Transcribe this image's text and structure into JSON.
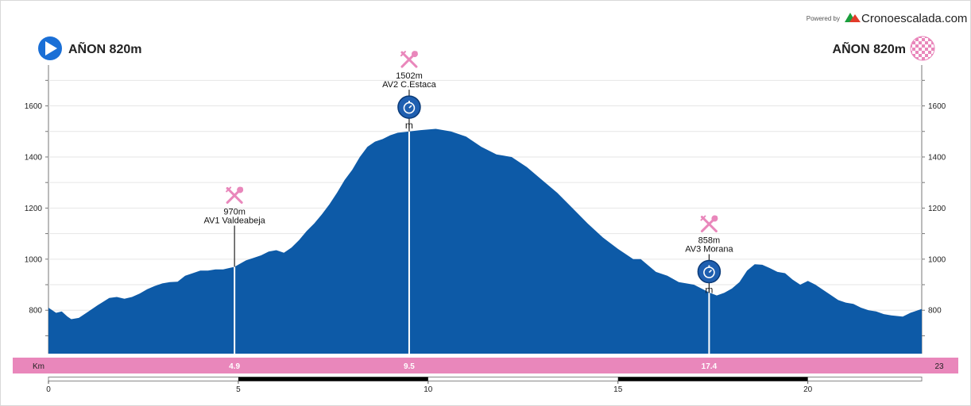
{
  "header": {
    "powered_by": "Powered by",
    "brand": "Cronoescalada.com",
    "start_label": "AÑON 820m",
    "finish_label": "AÑON 820m"
  },
  "colors": {
    "profile_fill": "#0d5aa7",
    "km_band": "#e987bb",
    "marker_pink": "#e987bb",
    "timer_blue": "#1f5fb0",
    "grid": "#e6e6e6"
  },
  "icons": {
    "start": "play-circle-icon",
    "finish": "checkered-flag-icon",
    "aid": "fork-knife-icon",
    "timer": "stopwatch-icon"
  },
  "chart_data": {
    "type": "area",
    "xlabel": "Km",
    "xlim": [
      0,
      23
    ],
    "ylim": [
      630,
      1760
    ],
    "y_ticks": [
      "800",
      "1000",
      "1200",
      "1400",
      "1600"
    ],
    "x_ticks": [
      "0",
      "5",
      "10",
      "15",
      "20"
    ],
    "km_band_labels": [
      "4.9",
      "9.5",
      "17.4"
    ],
    "km_band_end": "23",
    "grid": true,
    "series": [
      {
        "x": [
          0,
          0.2,
          0.35,
          0.5,
          0.6,
          0.8,
          1.0,
          1.3,
          1.6,
          1.8,
          2.0,
          2.2,
          2.4,
          2.6,
          2.8,
          3.0,
          3.2,
          3.4,
          3.6,
          3.8,
          4.0,
          4.2,
          4.4,
          4.6,
          4.9,
          5.2,
          5.4,
          5.6,
          5.8,
          6.0,
          6.2,
          6.4,
          6.6,
          6.8,
          7.0,
          7.2,
          7.4,
          7.6,
          7.8,
          8.0,
          8.2,
          8.4,
          8.6,
          8.8,
          9.0,
          9.2,
          9.5,
          9.8,
          10.2,
          10.6,
          11.0,
          11.4,
          11.8,
          12.2,
          12.6,
          13.0,
          13.4,
          13.8,
          14.2,
          14.6,
          15.0,
          15.4,
          15.6,
          15.8,
          16.0,
          16.3,
          16.6,
          17.0,
          17.4,
          17.6,
          17.8,
          18.0,
          18.2,
          18.4,
          18.6,
          18.8,
          19.0,
          19.2,
          19.4,
          19.6,
          19.8,
          20.0,
          20.2,
          20.4,
          20.6,
          20.8,
          21.0,
          21.2,
          21.4,
          21.6,
          21.8,
          22.0,
          22.2,
          22.5,
          22.7,
          22.9,
          23.0
        ],
        "y": [
          810,
          790,
          795,
          775,
          765,
          770,
          790,
          820,
          848,
          852,
          845,
          852,
          865,
          882,
          895,
          905,
          910,
          912,
          935,
          945,
          955,
          955,
          960,
          960,
          970,
          995,
          1005,
          1015,
          1030,
          1035,
          1025,
          1045,
          1075,
          1110,
          1140,
          1175,
          1215,
          1260,
          1310,
          1350,
          1400,
          1440,
          1460,
          1470,
          1485,
          1495,
          1500,
          1505,
          1510,
          1500,
          1480,
          1440,
          1410,
          1400,
          1360,
          1310,
          1260,
          1200,
          1140,
          1085,
          1040,
          1000,
          1000,
          975,
          950,
          935,
          910,
          900,
          870,
          858,
          868,
          885,
          910,
          955,
          980,
          978,
          965,
          950,
          945,
          920,
          900,
          915,
          900,
          880,
          860,
          840,
          830,
          825,
          810,
          800,
          795,
          785,
          780,
          775,
          790,
          800,
          805
        ]
      }
    ],
    "annotations": [
      {
        "km": 4.9,
        "elevation": "970m",
        "name": "AV1 Valdeabeja",
        "icon": "aid"
      },
      {
        "km": 9.5,
        "elevation": "1502m",
        "name": "AV2 C.Estaca",
        "icon": "aid",
        "timer": true,
        "timer_label": "m"
      },
      {
        "km": 17.4,
        "elevation": "858m",
        "name": "AV3 Morana",
        "icon": "aid",
        "timer": true,
        "timer_label": "m"
      }
    ]
  }
}
